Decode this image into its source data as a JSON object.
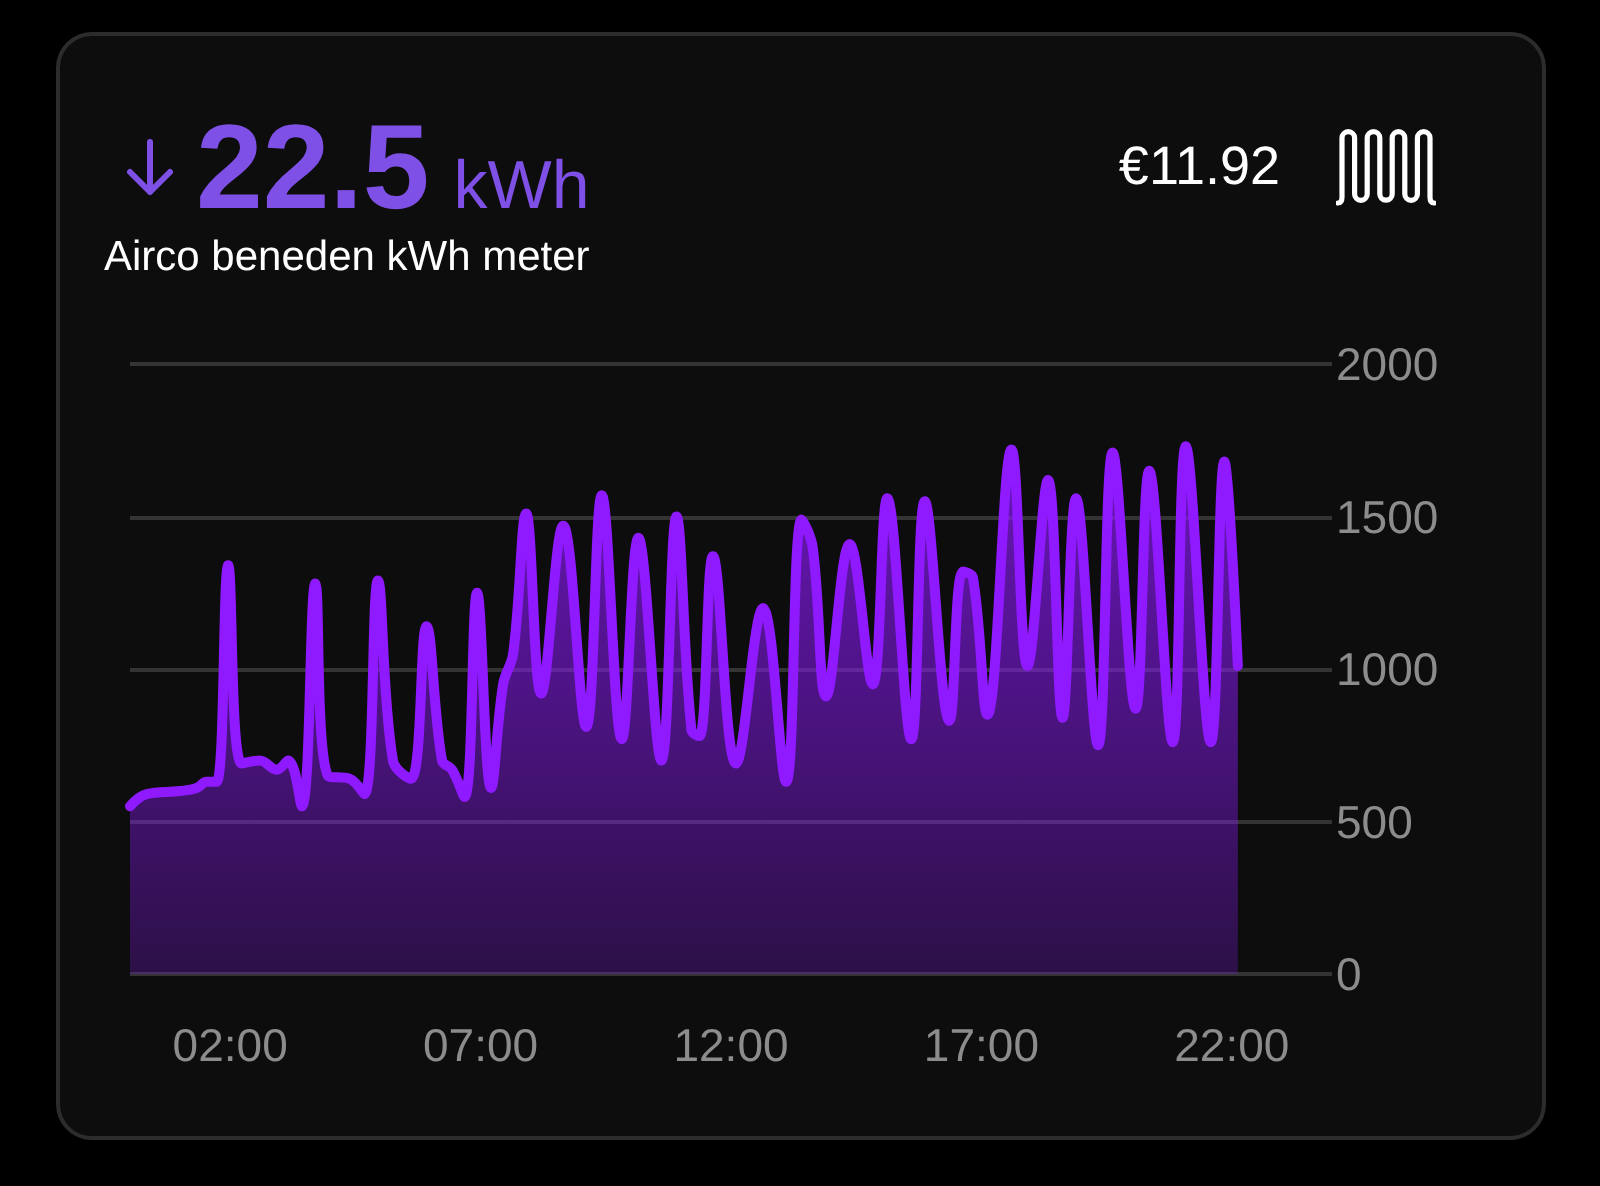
{
  "chart_data": {
    "type": "area",
    "title": "22.5 kWh",
    "subtitle": "Airco beneden kWh meter",
    "annotations": [
      "€11.92"
    ],
    "x": [
      0,
      0.33,
      1.0,
      1.33,
      1.53,
      1.73,
      1.96,
      2.23,
      2.59,
      2.93,
      3.16,
      3.43,
      3.7,
      3.95,
      4.39,
      4.68,
      4.95,
      5.25,
      5.61,
      5.92,
      6.23,
      6.43,
      6.68,
      6.93,
      7.21,
      7.45,
      7.65,
      7.91,
      8.21,
      8.65,
      9.11,
      9.42,
      9.82,
      10.15,
      10.61,
      10.91,
      11.21,
      11.37,
      11.64,
      12.1,
      12.64,
      13.1,
      13.41,
      13.63,
      13.9,
      14.37,
      14.83,
      15.12,
      15.6,
      15.87,
      16.36,
      16.63,
      16.83,
      17.12,
      17.6,
      17.92,
      18.33,
      18.62,
      18.89,
      19.33,
      19.62,
      20.08,
      20.35,
      20.82,
      21.08,
      21.58,
      21.85,
      22.12
    ],
    "series": [
      {
        "color": "#8f1aff",
        "values": [
          550,
          590,
          600,
          610,
          630,
          630,
          1340,
          690,
          700,
          670,
          700,
          550,
          1280,
          650,
          640,
          590,
          1290,
          700,
          640,
          1140,
          700,
          670,
          580,
          1250,
          610,
          950,
          1050,
          1510,
          920,
          1470,
          810,
          1570,
          770,
          1430,
          700,
          1500,
          800,
          780,
          1370,
          690,
          1200,
          630,
          1490,
          1400,
          910,
          1410,
          950,
          1560,
          770,
          1550,
          830,
          1320,
          1300,
          850,
          1720,
          1010,
          1620,
          840,
          1560,
          750,
          1710,
          870,
          1650,
          760,
          1730,
          760,
          1680,
          1010
        ]
      }
    ],
    "xlim": [
      0,
      24
    ],
    "xticks": [
      {
        "value": 2,
        "label": "02:00"
      },
      {
        "value": 7,
        "label": "07:00"
      },
      {
        "value": 12,
        "label": "12:00"
      },
      {
        "value": 17,
        "label": "17:00"
      },
      {
        "value": 22,
        "label": "22:00"
      }
    ],
    "ylim": [
      0,
      2000
    ],
    "yticks": [
      0,
      500,
      1000,
      1500,
      2000
    ],
    "grid": "y",
    "marker": "none",
    "line_style": "solid"
  }
}
